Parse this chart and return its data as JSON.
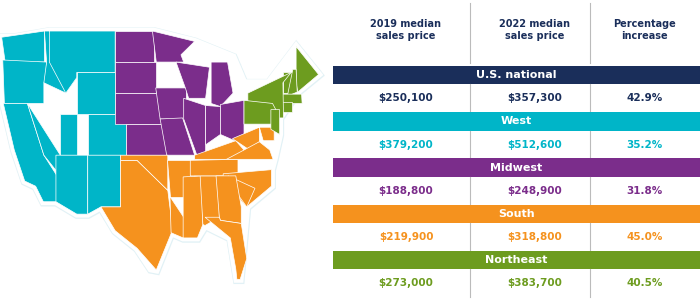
{
  "header_col1": "2019 median\nsales price",
  "header_col2": "2022 median\nsales price",
  "header_col3": "Percentage\nincrease",
  "header_font_color": "#1a2e5a",
  "regions": [
    {
      "name": "U.S. national",
      "bg_color": "#1a2e5a",
      "text_color": "#ffffff",
      "data_color": "#1a2e5a",
      "price_2019": "$250,100",
      "price_2022": "$357,300",
      "pct": "42.9%"
    },
    {
      "name": "West",
      "bg_color": "#00b5c8",
      "text_color": "#ffffff",
      "data_color": "#00b5c8",
      "price_2019": "$379,200",
      "price_2022": "$512,600",
      "pct": "35.2%"
    },
    {
      "name": "Midwest",
      "bg_color": "#7b2d8b",
      "text_color": "#ffffff",
      "data_color": "#7b2d8b",
      "price_2019": "$188,800",
      "price_2022": "$248,900",
      "pct": "31.8%"
    },
    {
      "name": "South",
      "bg_color": "#f5921e",
      "text_color": "#ffffff",
      "data_color": "#f5921e",
      "price_2019": "$219,900",
      "price_2022": "$318,800",
      "pct": "45.0%"
    },
    {
      "name": "Northeast",
      "bg_color": "#6d9c1f",
      "text_color": "#ffffff",
      "data_color": "#6d9c1f",
      "price_2019": "$273,000",
      "price_2022": "$383,700",
      "pct": "40.5%"
    }
  ],
  "divider_color": "#bbbbbb",
  "bg_color": "#ffffff",
  "map_shadow_color": "#d8eef5",
  "west_color": "#00b5c8",
  "midwest_color": "#7b2d8b",
  "south_color": "#f5921e",
  "northeast_color": "#6d9c1f",
  "state_line_color": "#ffffff",
  "map_outline_color": "#ffffff"
}
